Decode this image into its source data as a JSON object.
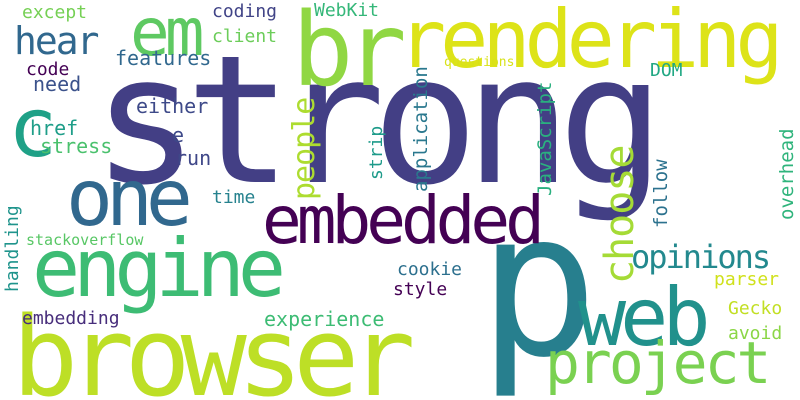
{
  "words": [
    {
      "text": "strong",
      "color": "#433f85",
      "vertical": false
    },
    {
      "text": "browser",
      "color": "#bddf26",
      "vertical": false
    },
    {
      "text": "engine",
      "color": "#3dbc74",
      "vertical": false
    },
    {
      "text": "p",
      "color": "#277f8e",
      "vertical": false
    },
    {
      "text": "rendering",
      "color": "#dde318",
      "vertical": false
    },
    {
      "text": "br",
      "color": "#90d743",
      "vertical": false
    },
    {
      "text": "embedded",
      "color": "#440154",
      "vertical": false
    },
    {
      "text": "one",
      "color": "#31688e",
      "vertical": false
    },
    {
      "text": "web",
      "color": "#21918c",
      "vertical": false
    },
    {
      "text": "project",
      "color": "#7ad151",
      "vertical": false
    },
    {
      "text": "em",
      "color": "#5ec962",
      "vertical": false
    },
    {
      "text": "c",
      "color": "#1fa187",
      "vertical": false
    },
    {
      "text": "hear",
      "color": "#31688e",
      "vertical": false
    },
    {
      "text": "choose",
      "color": "#a5db36",
      "vertical": true
    },
    {
      "text": "people",
      "color": "#addc30",
      "vertical": true
    },
    {
      "text": "opinions",
      "color": "#23898e",
      "vertical": false
    },
    {
      "text": "features",
      "color": "#31688e",
      "vertical": false
    },
    {
      "text": "either",
      "color": "#3e4a89",
      "vertical": false
    },
    {
      "text": "stress",
      "color": "#4ac16d",
      "vertical": false
    },
    {
      "text": "run",
      "color": "#3f4788",
      "vertical": false
    },
    {
      "text": "code",
      "color": "#440154",
      "vertical": false
    },
    {
      "text": "need",
      "color": "#3b528b",
      "vertical": false
    },
    {
      "text": "href",
      "color": "#1f9e89",
      "vertical": false
    },
    {
      "text": "e",
      "color": "#3e4989",
      "vertical": false
    },
    {
      "text": "except",
      "color": "#75d054",
      "vertical": false
    },
    {
      "text": "coding",
      "color": "#414487",
      "vertical": false
    },
    {
      "text": "client",
      "color": "#6ccd5a",
      "vertical": false
    },
    {
      "text": "WebKit",
      "color": "#35b779",
      "vertical": false
    },
    {
      "text": "questions",
      "color": "#d8e219",
      "vertical": false
    },
    {
      "text": "DOM",
      "color": "#22a884",
      "vertical": false
    },
    {
      "text": "application",
      "color": "#2a788e",
      "vertical": true
    },
    {
      "text": "JavaScript",
      "color": "#2ab07f",
      "vertical": true
    },
    {
      "text": "strip",
      "color": "#1e9b8a",
      "vertical": true
    },
    {
      "text": "follow",
      "color": "#2c728e",
      "vertical": true
    },
    {
      "text": "overhead",
      "color": "#2fb47c",
      "vertical": true
    },
    {
      "text": "time",
      "color": "#26828e",
      "vertical": false
    },
    {
      "text": "handling",
      "color": "#1f948c",
      "vertical": true
    },
    {
      "text": "stackoverflow",
      "color": "#58c765",
      "vertical": false
    },
    {
      "text": "cookie",
      "color": "#2d708e",
      "vertical": false
    },
    {
      "text": "style",
      "color": "#440154",
      "vertical": false
    },
    {
      "text": "parser",
      "color": "#d0e11c",
      "vertical": false
    },
    {
      "text": "Gecko",
      "color": "#c2df23",
      "vertical": false
    },
    {
      "text": "experience",
      "color": "#3dbc74",
      "vertical": false
    },
    {
      "text": "embedding",
      "color": "#472d7b",
      "vertical": false
    },
    {
      "text": "avoid",
      "color": "#8bd646",
      "vertical": false
    }
  ]
}
